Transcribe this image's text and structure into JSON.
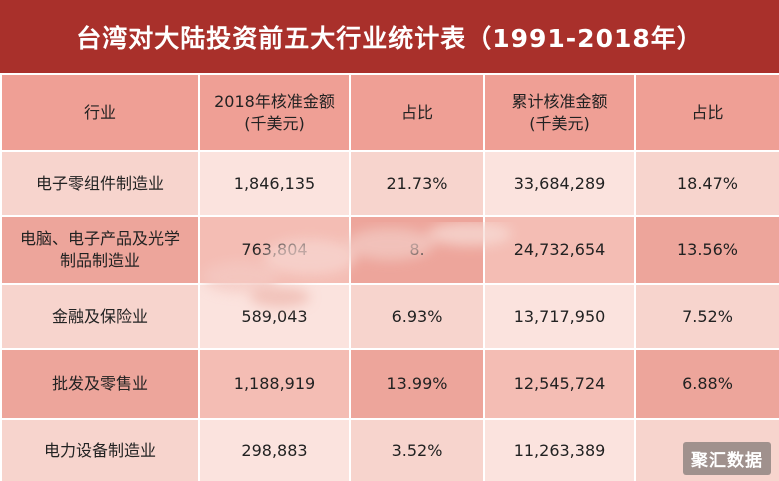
{
  "title": "台湾对大陆投资前五大行业统计表（1991-2018年）",
  "headers": [
    {
      "line1": "行业",
      "line2": ""
    },
    {
      "line1": "2018年核准金额",
      "line2": "(千美元)"
    },
    {
      "line1": "占比",
      "line2": ""
    },
    {
      "line1": "累计核准金额",
      "line2": "(千美元)"
    },
    {
      "line1": "占比",
      "line2": ""
    }
  ],
  "rows": [
    {
      "industry_l1": "电子零组件制造业",
      "industry_l2": "",
      "amount_2018": "1,846,135",
      "share_2018": "21.73%",
      "cumulative": "33,684,289",
      "share_cum": "18.47%"
    },
    {
      "industry_l1": "电脑、电子产品及光学",
      "industry_l2": "制品制造业",
      "amount_2018": "763,804",
      "share_2018": "8.",
      "cumulative": "24,732,654",
      "share_cum": "13.56%"
    },
    {
      "industry_l1": "金融及保险业",
      "industry_l2": "",
      "amount_2018": "589,043",
      "share_2018": "6.93%",
      "cumulative": "13,717,950",
      "share_cum": "7.52%"
    },
    {
      "industry_l1": "批发及零售业",
      "industry_l2": "",
      "amount_2018": "1,188,919",
      "share_2018": "13.99%",
      "cumulative": "12,545,724",
      "share_cum": "6.88%"
    },
    {
      "industry_l1": "电力设备制造业",
      "industry_l2": "",
      "amount_2018": "298,883",
      "share_2018": "3.52%",
      "cumulative": "11,263,389",
      "share_cum": ""
    }
  ],
  "watermark": "聚汇数据",
  "colors": {
    "title_bg": "#a9302b",
    "header_bg": "#ef9f95",
    "row_light": "#f7d4cd",
    "row_dark": "#eda59b"
  }
}
